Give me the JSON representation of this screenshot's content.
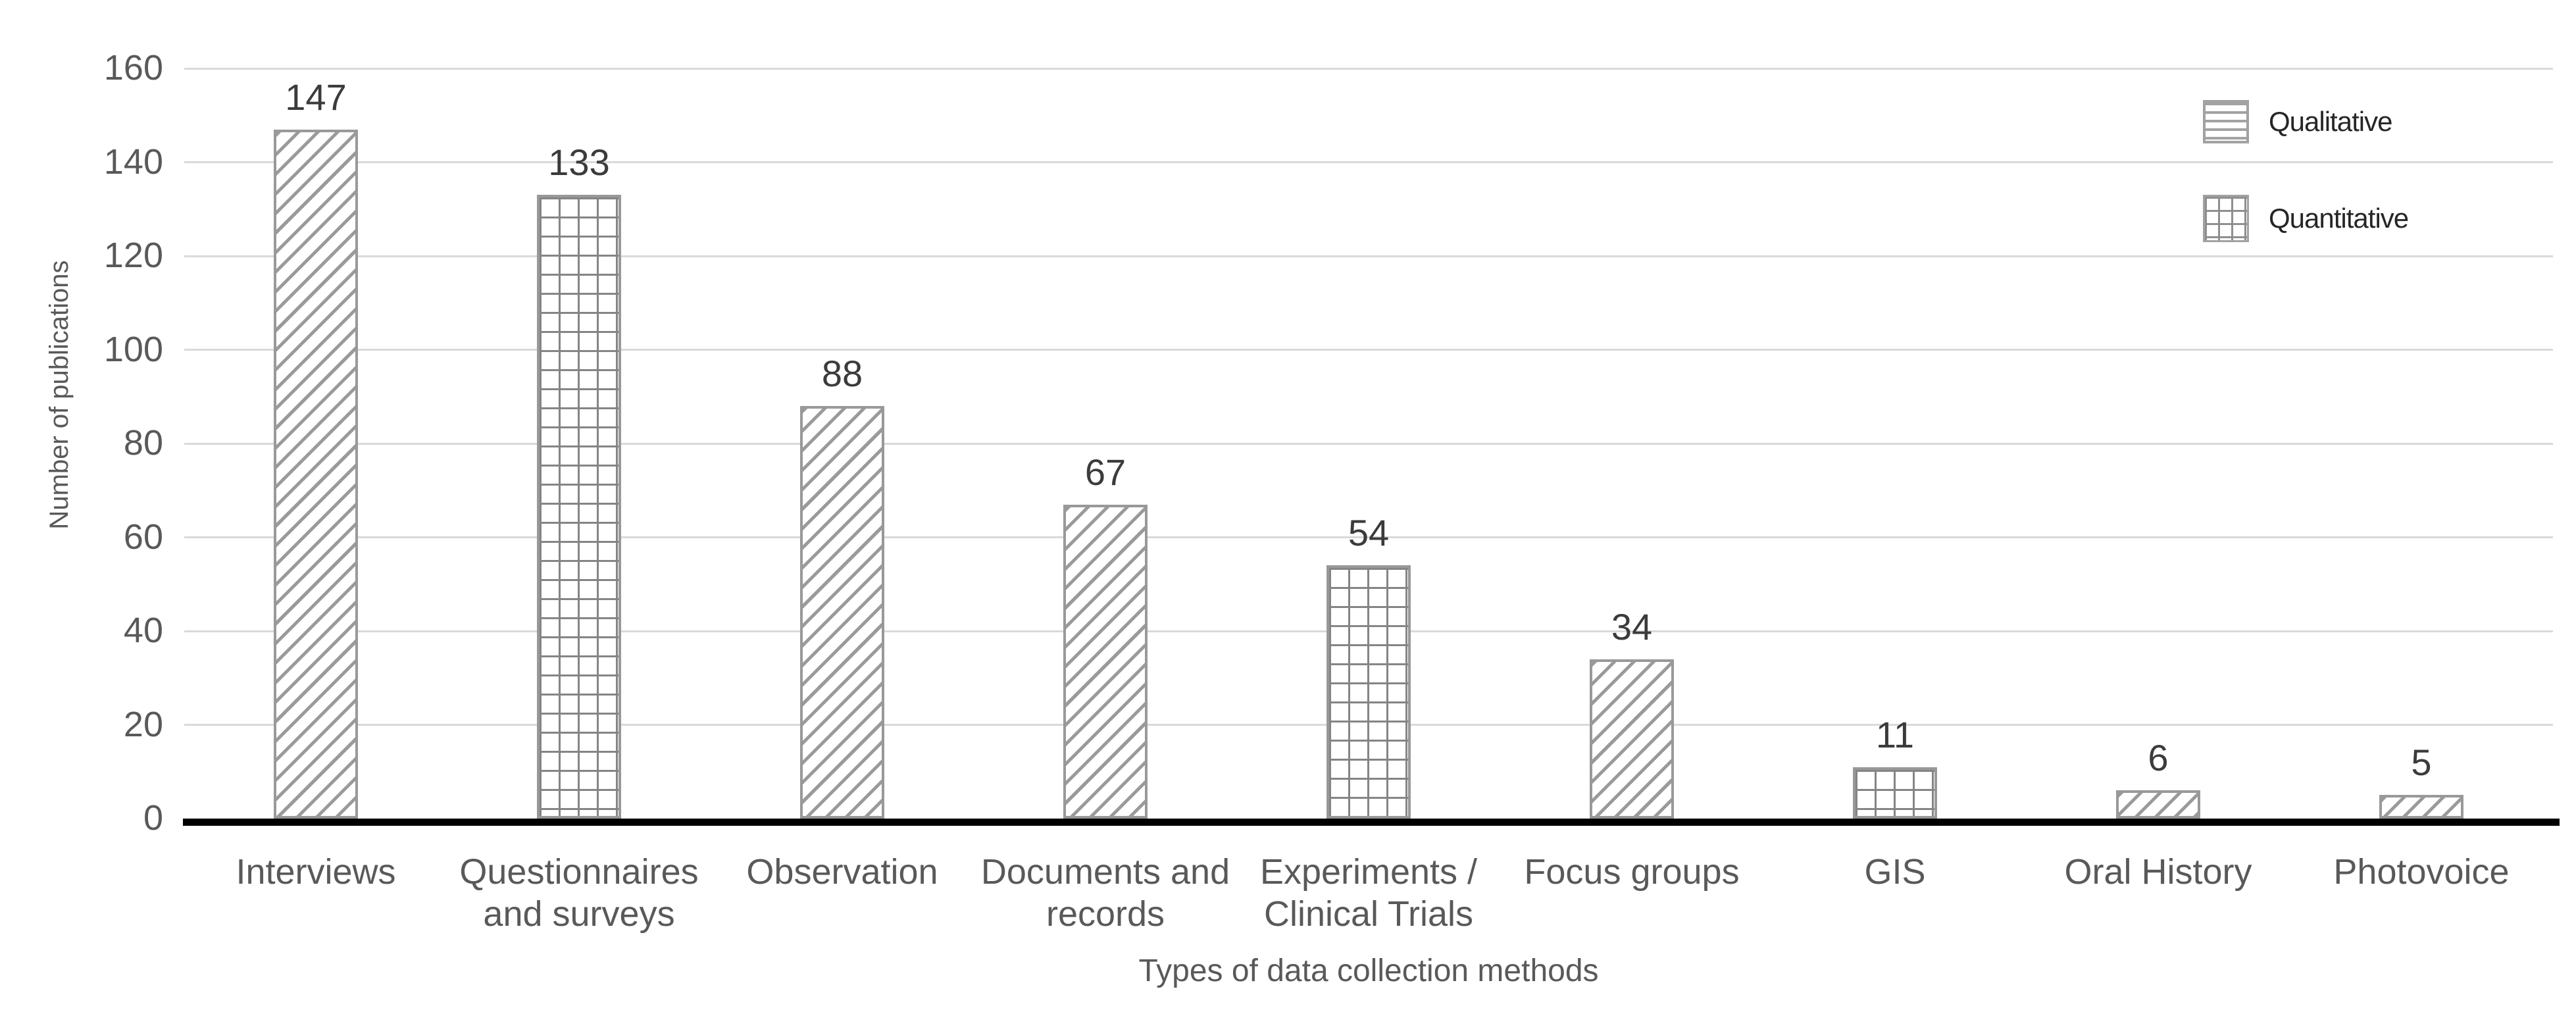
{
  "chart_data": {
    "type": "bar",
    "title": "",
    "xlabel": "Types of data collection methods",
    "ylabel": "Number of publications",
    "ylim": [
      0,
      160
    ],
    "yticks": [
      0,
      20,
      40,
      60,
      80,
      100,
      120,
      140,
      160
    ],
    "grid": true,
    "legend_position": "top-right",
    "categories": [
      "Interviews",
      "Questionnaires and surveys",
      "Observation",
      "Documents and records",
      "Experiments / Clinical Trials",
      "Focus groups",
      "GIS",
      "Oral History",
      "Photovoice"
    ],
    "values": [
      147,
      133,
      88,
      67,
      54,
      34,
      11,
      6,
      5
    ],
    "groups": [
      "Qualitative",
      "Quantitative",
      "Qualitative",
      "Qualitative",
      "Quantitative",
      "Qualitative",
      "Quantitative",
      "Qualitative",
      "Qualitative"
    ],
    "category_label_lines": [
      [
        "Interviews"
      ],
      [
        "Questionnaires",
        "and surveys"
      ],
      [
        "Observation"
      ],
      [
        "Documents and",
        "records"
      ],
      [
        "Experiments /",
        "Clinical Trials"
      ],
      [
        "Focus groups"
      ],
      [
        "GIS"
      ],
      [
        "Oral History"
      ],
      [
        "Photovoice"
      ]
    ],
    "legend": [
      {
        "label": "Qualitative",
        "pattern": "horizontal-lines"
      },
      {
        "label": "Quantitative",
        "pattern": "grid"
      }
    ],
    "colors": {
      "background": "#ffffff",
      "gridline": "#d9d9d9",
      "axis_line": "#000000",
      "qualitative_pattern_line": "#9a9a9a",
      "quantitative_pattern_line": "#858585",
      "bar_border": "#999999",
      "tick_text": "#595959",
      "data_label_text": "#3b3b3b",
      "category_text": "#595959",
      "axis_title_text": "#595959",
      "legend_text": "#262626"
    }
  }
}
